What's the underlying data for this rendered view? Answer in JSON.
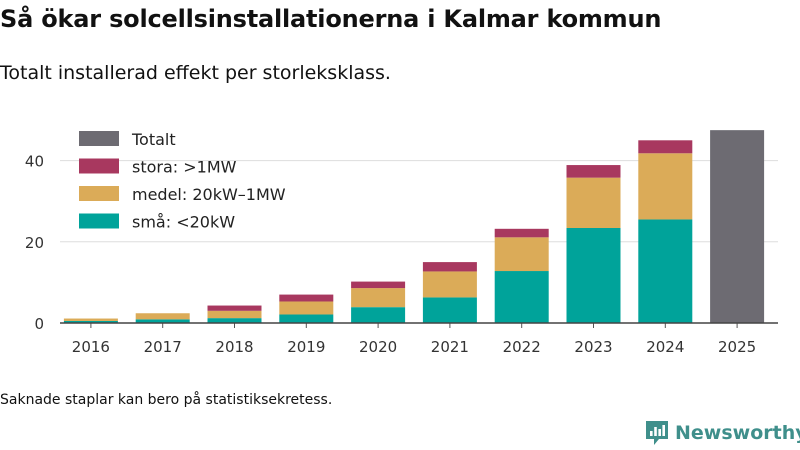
{
  "title": "Så ökar solcellsinstallationerna i Kalmar kommun",
  "subtitle": "Totalt installerad effekt per storleksklass.",
  "note": "Saknade staplar kan bero på statistiksekretess.",
  "brand": {
    "name": "Newsworthy",
    "icon": "newsworthy-logo-icon",
    "color": "#3f8f8b"
  },
  "chart_data": {
    "type": "bar",
    "stacked": true,
    "title": "Så ökar solcellsinstallationerna i Kalmar kommun",
    "xlabel": "",
    "ylabel": "",
    "ylim": [
      0,
      50
    ],
    "yticks": [
      0,
      20,
      40
    ],
    "grid": true,
    "legend_position": "top-left",
    "categories": [
      "2016",
      "2017",
      "2018",
      "2019",
      "2020",
      "2021",
      "2022",
      "2023",
      "2024",
      "2025"
    ],
    "series": [
      {
        "name": "små: <20kW",
        "color": "#00a39a",
        "values": [
          0.5,
          0.9,
          1.2,
          2.1,
          3.9,
          6.3,
          12.8,
          23.4,
          25.5,
          null
        ]
      },
      {
        "name": "medel: 20kW–1MW",
        "color": "#dbab58",
        "values": [
          0.6,
          1.5,
          1.8,
          3.2,
          4.7,
          6.4,
          8.3,
          12.4,
          16.3,
          null
        ]
      },
      {
        "name": "stora: >1MW",
        "color": "#a8385f",
        "values": [
          0.0,
          0.0,
          1.3,
          1.7,
          1.6,
          2.3,
          2.1,
          3.1,
          3.2,
          null
        ]
      },
      {
        "name": "Totalt",
        "color": "#6d6b72",
        "values": [
          null,
          null,
          null,
          null,
          null,
          null,
          null,
          null,
          null,
          47.5
        ]
      }
    ],
    "legend_order": [
      "Totalt",
      "stora: >1MW",
      "medel: 20kW–1MW",
      "små: <20kW"
    ]
  }
}
